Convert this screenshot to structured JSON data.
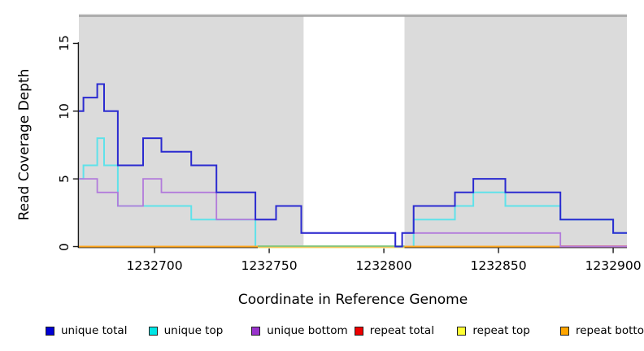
{
  "figure": {
    "ylabel": "Read Coverage Depth",
    "xlabel": "Coordinate in Reference Genome",
    "yticks": [
      0,
      5,
      10,
      15
    ],
    "xticks": [
      1232700,
      1232750,
      1232800,
      1232850,
      1232900
    ]
  },
  "chart_data": {
    "type": "line",
    "subtype": "step-coverage",
    "title": "",
    "xlabel": "Coordinate in Reference Genome",
    "ylabel": "Read Coverage Depth",
    "x_range": [
      1232667,
      1232906
    ],
    "y_range": [
      0,
      17
    ],
    "grid": false,
    "panel_background": "#DBDBDB",
    "panel_top_border_colors": [
      "#C6C6C6",
      "#9B9B9B"
    ],
    "shaded_repeat_regions": [
      {
        "from": 1232667,
        "to": 1232765
      },
      {
        "from": 1232809,
        "to": 1232906
      }
    ],
    "unshaded_gap_region": {
      "from": 1232765,
      "to": 1232809
    },
    "zero_line_segments": [
      {
        "from": 1232667,
        "to": 1232745,
        "color": "#FFA318"
      },
      {
        "from": 1232745,
        "to": 1232809,
        "color": "#82C882"
      },
      {
        "from": 1232809,
        "to": 1232877,
        "color": "#FFA318"
      },
      {
        "from": 1232877,
        "to": 1232906,
        "color": "#D9708C"
      }
    ],
    "series": [
      {
        "name": "unique top",
        "color": "#5FE2EA",
        "width": 2,
        "steps": [
          [
            1232667,
            5
          ],
          [
            1232669,
            6
          ],
          [
            1232675,
            8
          ],
          [
            1232678,
            6
          ],
          [
            1232684,
            3
          ],
          [
            1232716,
            2
          ],
          [
            1232744,
            0
          ],
          [
            1232813,
            2
          ],
          [
            1232831,
            3
          ],
          [
            1232839,
            4
          ],
          [
            1232853,
            3
          ],
          [
            1232877,
            2
          ],
          [
            1232900,
            1
          ]
        ],
        "end": 1232906
      },
      {
        "name": "repeat total",
        "color": "#E60000",
        "width": 1.4,
        "steps": [
          [
            1232667,
            0
          ]
        ],
        "end": 1232906
      },
      {
        "name": "repeat top",
        "color": "#EFEFAF",
        "width": 1.3,
        "steps": [
          [
            1232745,
            0
          ]
        ],
        "end": 1232809
      },
      {
        "name": "repeat bottom",
        "color": "#FFA318",
        "width": 2,
        "steps": [
          [
            1232667,
            0
          ]
        ],
        "end": 1232877
      },
      {
        "name": "unique bottom",
        "color": "#B27BDB",
        "width": 1.8,
        "steps": [
          [
            1232667,
            5
          ],
          [
            1232675,
            4
          ],
          [
            1232684,
            3
          ],
          [
            1232695,
            5
          ],
          [
            1232703,
            4
          ],
          [
            1232727,
            2
          ],
          [
            1232753,
            3
          ],
          [
            1232764,
            1
          ],
          [
            1232805,
            0
          ],
          [
            1232808,
            1
          ],
          [
            1232877,
            0
          ]
        ],
        "end": 1232906
      },
      {
        "name": "unique total",
        "color": "#2B2BD0",
        "width": 2,
        "steps": [
          [
            1232667,
            10
          ],
          [
            1232669,
            11
          ],
          [
            1232675,
            12
          ],
          [
            1232678,
            10
          ],
          [
            1232684,
            6
          ],
          [
            1232695,
            8
          ],
          [
            1232703,
            7
          ],
          [
            1232716,
            6
          ],
          [
            1232727,
            4
          ],
          [
            1232744,
            2
          ],
          [
            1232753,
            3
          ],
          [
            1232764,
            1
          ],
          [
            1232805,
            0
          ],
          [
            1232808,
            1
          ],
          [
            1232813,
            3
          ],
          [
            1232831,
            4
          ],
          [
            1232839,
            5
          ],
          [
            1232853,
            4
          ],
          [
            1232877,
            2
          ],
          [
            1232900,
            1
          ]
        ],
        "end": 1232906
      }
    ]
  },
  "legend": {
    "items": [
      {
        "label": "unique total",
        "color": "#0000D5"
      },
      {
        "label": "unique top",
        "color": "#00E5E5"
      },
      {
        "label": "unique bottom",
        "color": "#9933CC"
      },
      {
        "label": "repeat total",
        "color": "#EE0000"
      },
      {
        "label": "repeat top",
        "color": "#FFFF33"
      },
      {
        "label": "repeat bottom",
        "color": "#FFA500"
      }
    ]
  }
}
